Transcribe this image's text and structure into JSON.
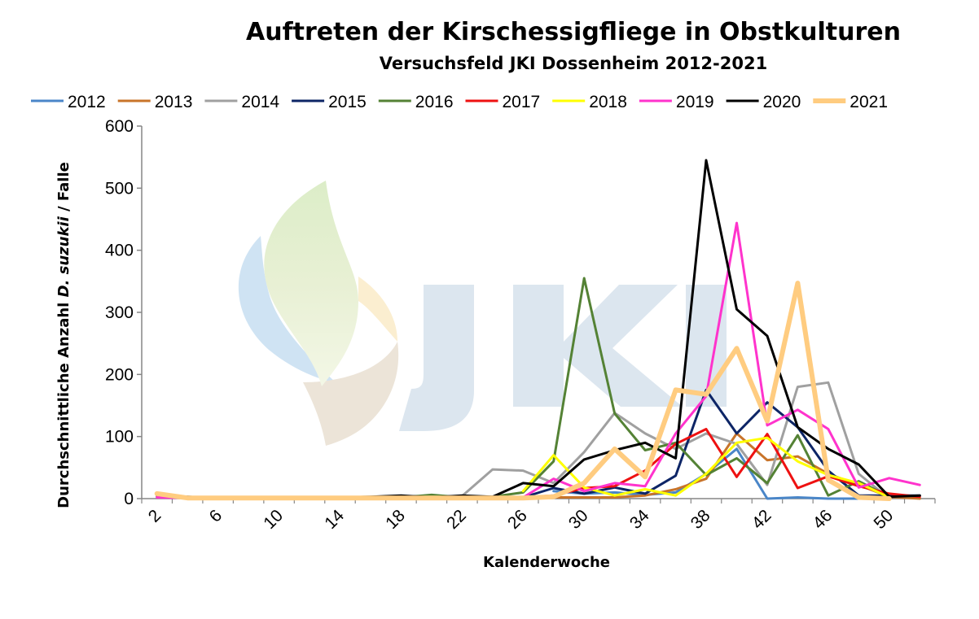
{
  "chart_data": {
    "type": "line",
    "title": "Auftreten der Kirschessigfliege in Obstkulturen",
    "subtitle": "Versuchsfeld JKI Dossenheim 2012-2021",
    "xlabel": "Kalenderwoche",
    "ylabel_parts": [
      "Durchschnittliche Anzahl ",
      "D. suzukii",
      " / Falle"
    ],
    "ylim": [
      0,
      600
    ],
    "xlim": [
      1,
      53
    ],
    "yticks": [
      0,
      100,
      200,
      300,
      400,
      500,
      600
    ],
    "xticks": [
      2,
      6,
      10,
      14,
      18,
      22,
      26,
      30,
      34,
      38,
      42,
      46,
      50
    ],
    "grid": false,
    "legend_position": "top",
    "watermark": {
      "text": "JKI"
    },
    "series": [
      {
        "name": "2012",
        "color": "#4a86c8",
        "width": 3,
        "points": [
          [
            28,
            12
          ],
          [
            30,
            8
          ],
          [
            32,
            10
          ],
          [
            34,
            6
          ],
          [
            36,
            10
          ],
          [
            38,
            40
          ],
          [
            40,
            80
          ],
          [
            42,
            0
          ],
          [
            44,
            2
          ],
          [
            46,
            0
          ],
          [
            48,
            0
          ],
          [
            50,
            0
          ]
        ]
      },
      {
        "name": "2013",
        "color": "#c8742a",
        "width": 3,
        "points": [
          [
            26,
            0
          ],
          [
            28,
            2
          ],
          [
            30,
            2
          ],
          [
            32,
            2
          ],
          [
            34,
            5
          ],
          [
            36,
            15
          ],
          [
            38,
            32
          ],
          [
            40,
            105
          ],
          [
            42,
            62
          ],
          [
            44,
            68
          ],
          [
            46,
            40
          ],
          [
            48,
            22
          ],
          [
            50,
            3
          ],
          [
            52,
            0
          ]
        ]
      },
      {
        "name": "2014",
        "color": "#a0a0a0",
        "width": 3,
        "points": [
          [
            20,
            2
          ],
          [
            22,
            4
          ],
          [
            24,
            47
          ],
          [
            26,
            45
          ],
          [
            28,
            25
          ],
          [
            30,
            75
          ],
          [
            32,
            138
          ],
          [
            34,
            105
          ],
          [
            36,
            80
          ],
          [
            38,
            105
          ],
          [
            40,
            88
          ],
          [
            42,
            22
          ],
          [
            44,
            180
          ],
          [
            46,
            187
          ],
          [
            48,
            40
          ],
          [
            50,
            0
          ]
        ]
      },
      {
        "name": "2015",
        "color": "#0d2566",
        "width": 3,
        "points": [
          [
            24,
            0
          ],
          [
            26,
            2
          ],
          [
            28,
            17
          ],
          [
            30,
            8
          ],
          [
            32,
            18
          ],
          [
            34,
            8
          ],
          [
            36,
            37
          ],
          [
            38,
            175
          ],
          [
            40,
            105
          ],
          [
            42,
            155
          ],
          [
            44,
            115
          ],
          [
            46,
            45
          ],
          [
            48,
            5
          ],
          [
            50,
            5
          ],
          [
            52,
            5
          ]
        ]
      },
      {
        "name": "2016",
        "color": "#548235",
        "width": 3,
        "points": [
          [
            2,
            3
          ],
          [
            4,
            1
          ],
          [
            6,
            1
          ],
          [
            8,
            1
          ],
          [
            10,
            1
          ],
          [
            12,
            1
          ],
          [
            14,
            1
          ],
          [
            16,
            2
          ],
          [
            18,
            2
          ],
          [
            20,
            6
          ],
          [
            22,
            2
          ],
          [
            24,
            3
          ],
          [
            26,
            10
          ],
          [
            28,
            60
          ],
          [
            30,
            355
          ],
          [
            32,
            137
          ],
          [
            34,
            78
          ],
          [
            36,
            90
          ],
          [
            38,
            38
          ],
          [
            40,
            65
          ],
          [
            42,
            25
          ],
          [
            44,
            102
          ],
          [
            46,
            5
          ],
          [
            48,
            28
          ],
          [
            50,
            3
          ]
        ]
      },
      {
        "name": "2017",
        "color": "#ee1111",
        "width": 3,
        "points": [
          [
            26,
            2
          ],
          [
            28,
            5
          ],
          [
            30,
            17
          ],
          [
            32,
            20
          ],
          [
            34,
            45
          ],
          [
            36,
            88
          ],
          [
            38,
            112
          ],
          [
            40,
            35
          ],
          [
            42,
            104
          ],
          [
            44,
            17
          ],
          [
            46,
            36
          ],
          [
            48,
            20
          ],
          [
            50,
            8
          ],
          [
            52,
            3
          ]
        ]
      },
      {
        "name": "2018",
        "color": "#ffff00",
        "width": 3,
        "points": [
          [
            26,
            12
          ],
          [
            28,
            70
          ],
          [
            30,
            18
          ],
          [
            32,
            5
          ],
          [
            34,
            15
          ],
          [
            36,
            5
          ],
          [
            38,
            40
          ],
          [
            40,
            90
          ],
          [
            42,
            98
          ],
          [
            44,
            60
          ],
          [
            46,
            38
          ],
          [
            48,
            25
          ],
          [
            50,
            2
          ]
        ]
      },
      {
        "name": "2019",
        "color": "#ff33cc",
        "width": 3,
        "points": [
          [
            2,
            2
          ],
          [
            4,
            1
          ],
          [
            26,
            2
          ],
          [
            28,
            32
          ],
          [
            30,
            12
          ],
          [
            32,
            25
          ],
          [
            34,
            20
          ],
          [
            36,
            105
          ],
          [
            38,
            165
          ],
          [
            40,
            444
          ],
          [
            42,
            118
          ],
          [
            44,
            143
          ],
          [
            46,
            112
          ],
          [
            48,
            18
          ],
          [
            50,
            33
          ],
          [
            52,
            22
          ]
        ]
      },
      {
        "name": "2020",
        "color": "#000000",
        "width": 3,
        "points": [
          [
            2,
            6
          ],
          [
            4,
            3
          ],
          [
            6,
            1
          ],
          [
            8,
            1
          ],
          [
            10,
            1
          ],
          [
            12,
            1
          ],
          [
            14,
            2
          ],
          [
            16,
            3
          ],
          [
            18,
            5
          ],
          [
            20,
            2
          ],
          [
            22,
            5
          ],
          [
            24,
            3
          ],
          [
            26,
            25
          ],
          [
            28,
            20
          ],
          [
            30,
            63
          ],
          [
            32,
            78
          ],
          [
            34,
            90
          ],
          [
            36,
            65
          ],
          [
            38,
            545
          ],
          [
            40,
            305
          ],
          [
            42,
            262
          ],
          [
            44,
            115
          ],
          [
            46,
            80
          ],
          [
            48,
            55
          ],
          [
            50,
            3
          ],
          [
            52,
            5
          ]
        ]
      },
      {
        "name": "2021",
        "color": "#ffcc80",
        "width": 6,
        "points": [
          [
            2,
            8
          ],
          [
            4,
            1
          ],
          [
            6,
            1
          ],
          [
            8,
            1
          ],
          [
            10,
            1
          ],
          [
            12,
            1
          ],
          [
            14,
            1
          ],
          [
            16,
            1
          ],
          [
            18,
            1
          ],
          [
            20,
            1
          ],
          [
            22,
            1
          ],
          [
            24,
            1
          ],
          [
            26,
            1
          ],
          [
            28,
            3
          ],
          [
            30,
            25
          ],
          [
            32,
            80
          ],
          [
            34,
            35
          ],
          [
            36,
            175
          ],
          [
            38,
            168
          ],
          [
            40,
            242
          ],
          [
            42,
            125
          ],
          [
            44,
            347
          ],
          [
            46,
            30
          ],
          [
            48,
            2
          ],
          [
            50,
            0
          ]
        ]
      }
    ]
  }
}
